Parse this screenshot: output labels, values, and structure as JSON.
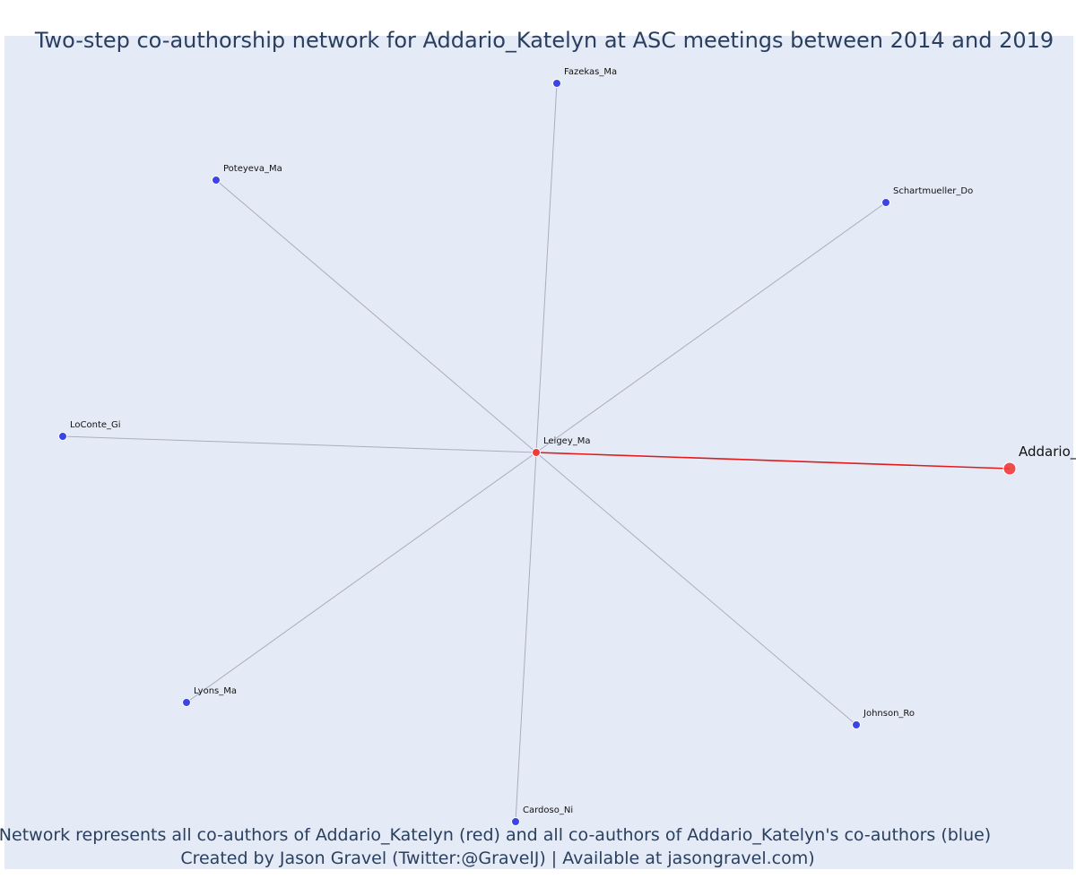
{
  "title": "Two-step co-authorship network for Addario_Katelyn at ASC meetings between 2014 and 2019",
  "footnote_line1": "Network represents all co-authors of Addario_Katelyn (red) and all co-authors of Addario_Katelyn's co-authors (blue)",
  "footnote_line2": "Created by Jason Gravel (Twitter:@GravelJ) | Available at jasongravel.com)",
  "colors": {
    "background": "#e5ebf6",
    "first_degree_node": "#ef3b3b",
    "second_degree_node": "#3d44e6",
    "focal_edge": "#e31a1c",
    "other_edge": "#a9adc0"
  },
  "nodes": [
    {
      "id": "focal",
      "label": "Addario_",
      "role": "focal"
    },
    {
      "id": "leigey",
      "label": "Leigey_Ma",
      "role": "co-author"
    },
    {
      "id": "fazekas",
      "label": "Fazekas_Ma",
      "role": "second-degree"
    },
    {
      "id": "poteyeva",
      "label": "Poteyeva_Ma",
      "role": "second-degree"
    },
    {
      "id": "schartmueller",
      "label": "Schartmueller_Do",
      "role": "second-degree"
    },
    {
      "id": "loconte",
      "label": "LoConte_Gi",
      "role": "second-degree"
    },
    {
      "id": "lyons",
      "label": "Lyons_Ma",
      "role": "second-degree"
    },
    {
      "id": "johnson",
      "label": "Johnson_Ro",
      "role": "second-degree"
    },
    {
      "id": "cardoso",
      "label": "Cardoso_Ni",
      "role": "second-degree"
    }
  ],
  "edges": [
    {
      "source": "focal",
      "target": "leigey"
    },
    {
      "source": "leigey",
      "target": "fazekas"
    },
    {
      "source": "leigey",
      "target": "poteyeva"
    },
    {
      "source": "leigey",
      "target": "schartmueller"
    },
    {
      "source": "leigey",
      "target": "loconte"
    },
    {
      "source": "leigey",
      "target": "lyons"
    },
    {
      "source": "leigey",
      "target": "johnson"
    },
    {
      "source": "leigey",
      "target": "cardoso"
    }
  ]
}
